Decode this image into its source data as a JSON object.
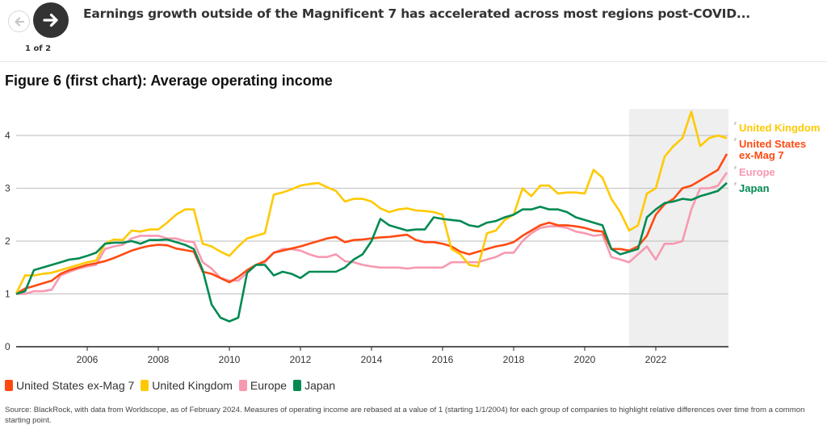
{
  "header": {
    "headline": "Earnings growth outside of the Magnificent 7 has accelerated across most regions post-COVID...",
    "page_counter": "1 of 2",
    "prev_icon": "arrow-left-icon",
    "next_icon": "arrow-right-icon"
  },
  "chart_title": "Figure 6 (first chart): Average operating income",
  "source_note": "Source: BlackRock, with data from Worldscope, as of February 2024. Measures of operating income are rebased at a value of 1 (starting 1/1/2004) for each group of companies to highlight relative differences over time from a common starting point.",
  "colors": {
    "us": "#ff4a12",
    "uk": "#ffc900",
    "europe": "#f799b0",
    "japan": "#008a52",
    "grid": "#c8c8c8",
    "shade": "#efefef"
  },
  "chart_data": {
    "type": "line",
    "title": "Figure 6 (first chart): Average operating income",
    "xlabel": "",
    "ylabel": "",
    "xlim": [
      2004.0,
      2024.0
    ],
    "ylim": [
      0,
      4.5
    ],
    "yticks": [
      0,
      1,
      2,
      3,
      4
    ],
    "xticks": [
      2006,
      2008,
      2010,
      2012,
      2014,
      2016,
      2018,
      2020,
      2022
    ],
    "grid": true,
    "shaded_region": [
      2021.25,
      2024.0
    ],
    "legend_position": "bottom-left",
    "legend": [
      "United States ex-Mag 7",
      "United Kingdom",
      "Europe",
      "Japan"
    ],
    "end_labels": [
      {
        "series": "uk",
        "lines": [
          "United Kingdom"
        ]
      },
      {
        "series": "us",
        "lines": [
          "United States",
          "ex-Mag 7"
        ]
      },
      {
        "series": "europe",
        "lines": [
          "Europe"
        ]
      },
      {
        "series": "japan",
        "lines": [
          "Japan"
        ]
      }
    ],
    "x": [
      2004.0,
      2004.25,
      2004.5,
      2004.75,
      2005.0,
      2005.25,
      2005.5,
      2005.75,
      2006.0,
      2006.25,
      2006.5,
      2006.75,
      2007.0,
      2007.25,
      2007.5,
      2007.75,
      2008.0,
      2008.25,
      2008.5,
      2008.75,
      2009.0,
      2009.25,
      2009.5,
      2009.75,
      2010.0,
      2010.25,
      2010.5,
      2010.75,
      2011.0,
      2011.25,
      2011.5,
      2011.75,
      2012.0,
      2012.25,
      2012.5,
      2012.75,
      2013.0,
      2013.25,
      2013.5,
      2013.75,
      2014.0,
      2014.25,
      2014.5,
      2014.75,
      2015.0,
      2015.25,
      2015.5,
      2015.75,
      2016.0,
      2016.25,
      2016.5,
      2016.75,
      2017.0,
      2017.25,
      2017.5,
      2017.75,
      2018.0,
      2018.25,
      2018.5,
      2018.75,
      2019.0,
      2019.25,
      2019.5,
      2019.75,
      2020.0,
      2020.25,
      2020.5,
      2020.75,
      2021.0,
      2021.25,
      2021.5,
      2021.75,
      2022.0,
      2022.25,
      2022.5,
      2022.75,
      2023.0,
      2023.25,
      2023.5,
      2023.75,
      2024.0
    ],
    "series": [
      {
        "name": "United States ex-Mag 7",
        "key": "us",
        "values": [
          1.0,
          1.1,
          1.15,
          1.2,
          1.25,
          1.38,
          1.45,
          1.5,
          1.55,
          1.58,
          1.62,
          1.68,
          1.75,
          1.82,
          1.87,
          1.91,
          1.93,
          1.92,
          1.86,
          1.83,
          1.8,
          1.42,
          1.38,
          1.3,
          1.22,
          1.32,
          1.45,
          1.55,
          1.62,
          1.78,
          1.82,
          1.86,
          1.9,
          1.95,
          2.0,
          2.05,
          2.08,
          1.98,
          2.02,
          2.03,
          2.05,
          2.07,
          2.08,
          2.1,
          2.12,
          2.02,
          1.98,
          1.98,
          1.95,
          1.9,
          1.8,
          1.75,
          1.8,
          1.85,
          1.9,
          1.93,
          1.98,
          2.1,
          2.2,
          2.3,
          2.35,
          2.3,
          2.3,
          2.28,
          2.25,
          2.2,
          2.18,
          1.85,
          1.85,
          1.82,
          1.9,
          2.1,
          2.5,
          2.7,
          2.8,
          3.0,
          3.05,
          3.15,
          3.25,
          3.35,
          3.65
        ]
      },
      {
        "name": "United Kingdom",
        "key": "uk",
        "values": [
          1.0,
          1.35,
          1.35,
          1.38,
          1.4,
          1.45,
          1.5,
          1.55,
          1.6,
          1.63,
          1.95,
          2.03,
          2.02,
          2.2,
          2.18,
          2.22,
          2.22,
          2.35,
          2.5,
          2.6,
          2.6,
          1.95,
          1.9,
          1.8,
          1.72,
          1.9,
          2.05,
          2.1,
          2.15,
          2.88,
          2.92,
          2.98,
          3.05,
          3.08,
          3.1,
          3.02,
          2.95,
          2.75,
          2.8,
          2.8,
          2.75,
          2.62,
          2.55,
          2.6,
          2.62,
          2.58,
          2.57,
          2.55,
          2.5,
          1.85,
          1.75,
          1.55,
          1.52,
          2.15,
          2.2,
          2.4,
          2.5,
          3.0,
          2.85,
          3.05,
          3.05,
          2.9,
          2.92,
          2.92,
          2.9,
          3.35,
          3.2,
          2.8,
          2.55,
          2.2,
          2.3,
          2.9,
          3.0,
          3.6,
          3.8,
          3.95,
          4.45,
          3.8,
          3.95,
          4.0,
          3.95
        ]
      },
      {
        "name": "Europe",
        "key": "europe",
        "values": [
          1.0,
          1.0,
          1.05,
          1.05,
          1.08,
          1.35,
          1.42,
          1.48,
          1.52,
          1.55,
          1.85,
          1.9,
          1.93,
          2.05,
          2.1,
          2.1,
          2.1,
          2.05,
          2.05,
          2.0,
          1.98,
          1.6,
          1.48,
          1.3,
          1.25,
          1.25,
          1.4,
          1.55,
          1.6,
          1.78,
          1.85,
          1.85,
          1.82,
          1.75,
          1.7,
          1.7,
          1.75,
          1.62,
          1.6,
          1.55,
          1.52,
          1.5,
          1.5,
          1.5,
          1.48,
          1.5,
          1.5,
          1.5,
          1.5,
          1.6,
          1.6,
          1.6,
          1.6,
          1.65,
          1.7,
          1.78,
          1.78,
          2.0,
          2.15,
          2.25,
          2.28,
          2.28,
          2.25,
          2.18,
          2.15,
          2.1,
          2.12,
          1.7,
          1.65,
          1.6,
          1.75,
          1.9,
          1.65,
          1.95,
          1.95,
          2.0,
          2.6,
          3.0,
          3.0,
          3.05,
          3.3
        ]
      },
      {
        "name": "Japan",
        "key": "japan",
        "values": [
          1.0,
          1.05,
          1.45,
          1.5,
          1.55,
          1.6,
          1.65,
          1.67,
          1.72,
          1.78,
          1.95,
          1.97,
          1.97,
          2.0,
          1.95,
          2.02,
          2.02,
          2.03,
          1.98,
          1.93,
          1.85,
          1.45,
          0.8,
          0.55,
          0.48,
          0.55,
          1.4,
          1.55,
          1.55,
          1.35,
          1.42,
          1.38,
          1.3,
          1.42,
          1.42,
          1.42,
          1.42,
          1.5,
          1.65,
          1.75,
          2.0,
          2.42,
          2.3,
          2.25,
          2.2,
          2.22,
          2.22,
          2.45,
          2.42,
          2.4,
          2.38,
          2.3,
          2.27,
          2.35,
          2.38,
          2.45,
          2.5,
          2.6,
          2.6,
          2.65,
          2.6,
          2.6,
          2.55,
          2.45,
          2.4,
          2.35,
          2.3,
          1.85,
          1.75,
          1.8,
          1.85,
          2.45,
          2.6,
          2.72,
          2.75,
          2.8,
          2.78,
          2.85,
          2.9,
          2.95,
          3.1
        ]
      }
    ]
  },
  "legend_items": [
    {
      "label": "United States ex-Mag 7",
      "key": "us"
    },
    {
      "label": "United Kingdom",
      "key": "uk"
    },
    {
      "label": "Europe",
      "key": "europe"
    },
    {
      "label": "Japan",
      "key": "japan"
    }
  ]
}
